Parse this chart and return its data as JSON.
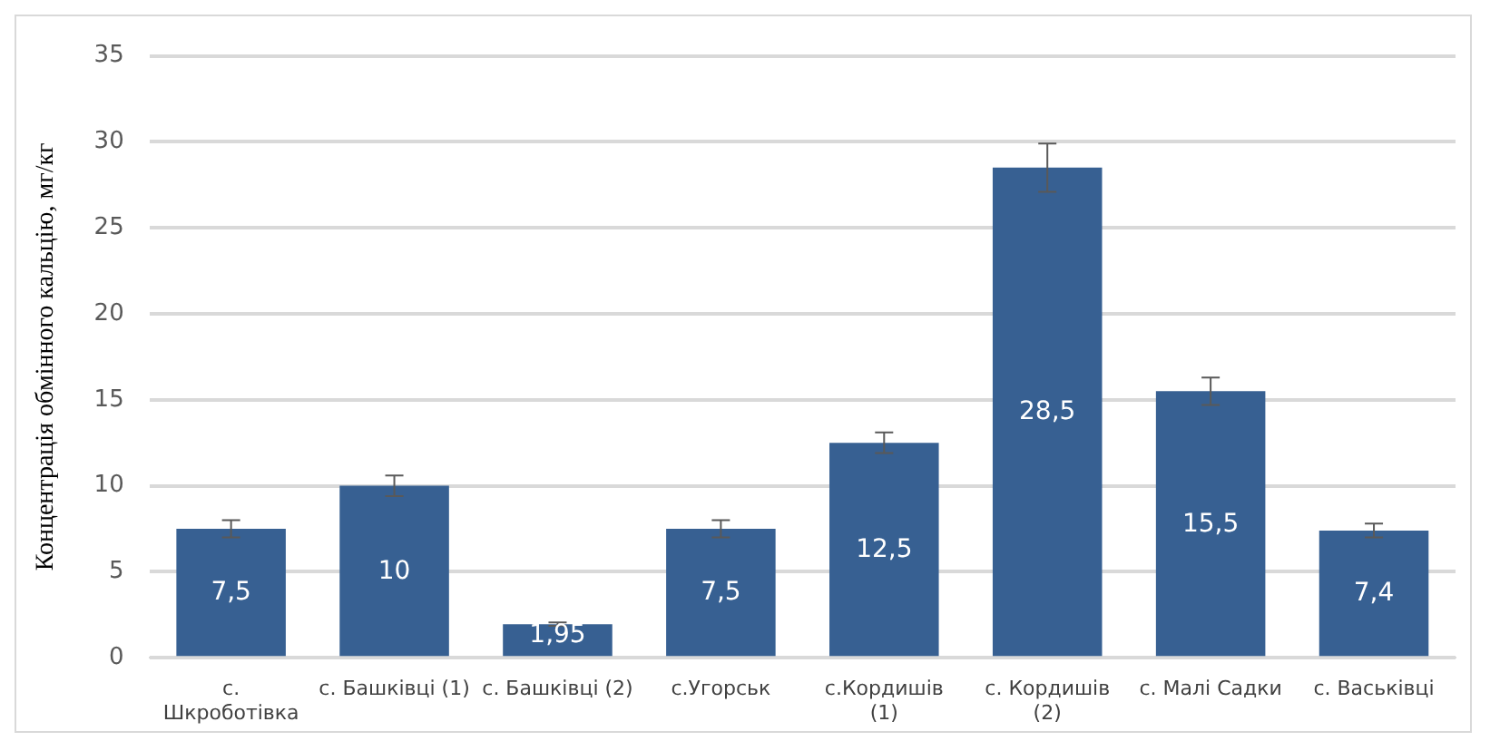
{
  "chart_data": {
    "type": "bar",
    "ylabel": "Концентрація обмінного кальцію, мг/кг",
    "categories": [
      "с. Шкроботівка",
      "с. Башківці (1)",
      "с. Башківці (2)",
      "с.Угорськ",
      "с.Кордишів (1)",
      "с. Кордишів (2)",
      "с. Малі Садки",
      "с. Васьківці"
    ],
    "values": [
      7.5,
      10,
      1.95,
      7.5,
      12.5,
      28.5,
      15.5,
      7.4
    ],
    "value_labels": [
      "7,5",
      "10",
      "1,95",
      "7,5",
      "12,5",
      "28,5",
      "15,5",
      "7,4"
    ],
    "errors": [
      0.5,
      0.6,
      0.1,
      0.5,
      0.6,
      1.4,
      0.8,
      0.4
    ],
    "color": "#376092",
    "ylim": [
      0,
      35
    ],
    "yticks": [
      0,
      5,
      10,
      15,
      20,
      25,
      30,
      35
    ],
    "grid": "y",
    "legend": false
  }
}
